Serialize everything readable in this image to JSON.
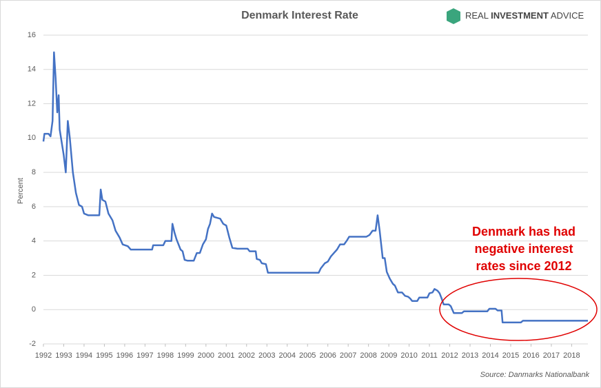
{
  "chart_data": {
    "type": "line",
    "title": "Denmark Interest Rate",
    "brand": [
      "REAL",
      "INVESTMENT",
      "ADVICE"
    ],
    "y_label": "Percent",
    "annotation": [
      "Denmark has had",
      "negative interest",
      "rates since 2012"
    ],
    "source": "Source: Danmarks Nationalbank",
    "color": "#4472c4",
    "annotation_color": "#e00000",
    "grid": true,
    "xlim": [
      1992,
      2018.8
    ],
    "xticks": [
      1992,
      1993,
      1994,
      1995,
      1996,
      1997,
      1998,
      1999,
      2000,
      2001,
      2002,
      2003,
      2004,
      2005,
      2006,
      2007,
      2008,
      2009,
      2010,
      2011,
      2012,
      2013,
      2014,
      2015,
      2016,
      2017,
      2018
    ],
    "ylim": [
      -2,
      16
    ],
    "yticks": [
      -2,
      0,
      2,
      4,
      6,
      8,
      10,
      12,
      14,
      16
    ],
    "x": [
      1992.0,
      1992.05,
      1992.25,
      1992.35,
      1992.45,
      1992.52,
      1992.6,
      1992.68,
      1992.75,
      1992.8,
      1993.0,
      1993.1,
      1993.2,
      1993.3,
      1993.45,
      1993.6,
      1993.75,
      1993.9,
      1994.0,
      1994.2,
      1994.75,
      1994.82,
      1994.9,
      1995.05,
      1995.2,
      1995.4,
      1995.55,
      1995.75,
      1995.9,
      1996.15,
      1996.3,
      1997.35,
      1997.4,
      1997.9,
      1998.0,
      1998.3,
      1998.35,
      1998.45,
      1998.55,
      1998.75,
      1998.85,
      1998.95,
      1999.1,
      1999.4,
      1999.55,
      1999.7,
      1999.85,
      2000.0,
      2000.1,
      2000.2,
      2000.3,
      2000.4,
      2000.7,
      2000.85,
      2001.0,
      2001.15,
      2001.3,
      2001.55,
      2002.05,
      2002.15,
      2002.45,
      2002.5,
      2002.65,
      2002.75,
      2002.95,
      2003.05,
      2005.55,
      2005.65,
      2005.85,
      2006.0,
      2006.15,
      2006.3,
      2006.45,
      2006.6,
      2006.8,
      2006.95,
      2007.05,
      2007.9,
      2008.05,
      2008.2,
      2008.35,
      2008.45,
      2008.55,
      2008.7,
      2008.8,
      2008.9,
      2009.05,
      2009.2,
      2009.3,
      2009.45,
      2009.65,
      2009.8,
      2009.95,
      2010.05,
      2010.15,
      2010.4,
      2010.5,
      2010.9,
      2011.0,
      2011.15,
      2011.25,
      2011.4,
      2011.5,
      2011.6,
      2011.7,
      2011.95,
      2012.05,
      2012.2,
      2012.6,
      2012.7,
      2013.85,
      2013.95,
      2014.25,
      2014.35,
      2014.55,
      2014.6,
      2015.5,
      2015.6,
      2018.8
    ],
    "values": [
      9.8,
      10.25,
      10.25,
      10.1,
      11,
      15,
      13.5,
      11.5,
      12.5,
      10.5,
      9,
      8,
      11,
      10,
      8,
      6.8,
      6.1,
      6,
      5.6,
      5.5,
      5.5,
      7,
      6.4,
      6.3,
      5.6,
      5.2,
      4.6,
      4.2,
      3.8,
      3.7,
      3.5,
      3.5,
      3.75,
      3.75,
      4,
      4,
      5,
      4.5,
      4.1,
      3.5,
      3.4,
      2.9,
      2.85,
      2.85,
      3.3,
      3.3,
      3.8,
      4.1,
      4.7,
      5,
      5.6,
      5.4,
      5.3,
      5,
      4.9,
      4.2,
      3.6,
      3.55,
      3.55,
      3.4,
      3.4,
      2.95,
      2.9,
      2.7,
      2.65,
      2.15,
      2.15,
      2.4,
      2.7,
      2.8,
      3.1,
      3.3,
      3.5,
      3.8,
      3.8,
      4.05,
      4.25,
      4.25,
      4.35,
      4.6,
      4.6,
      5.5,
      4.6,
      3,
      3,
      2.2,
      1.8,
      1.5,
      1.4,
      1,
      1,
      0.8,
      0.75,
      0.65,
      0.5,
      0.5,
      0.7,
      0.7,
      0.95,
      1,
      1.2,
      1.1,
      0.95,
      0.65,
      0.3,
      0.3,
      0.2,
      -0.2,
      -0.2,
      -0.1,
      -0.1,
      0.05,
      0.05,
      -0.05,
      -0.05,
      -0.75,
      -0.75,
      -0.65,
      -0.65
    ]
  }
}
